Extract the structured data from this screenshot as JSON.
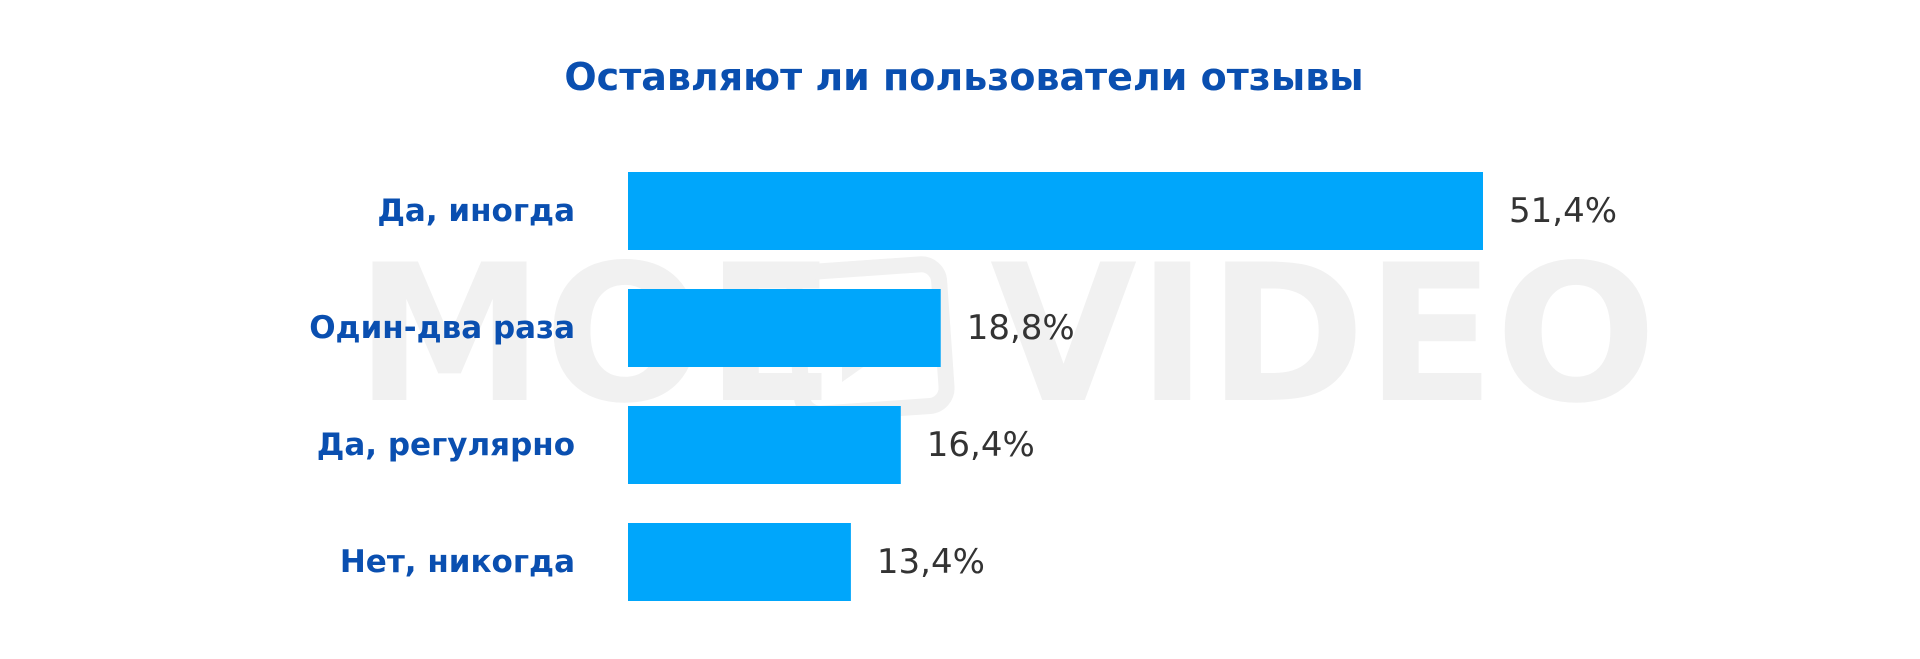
{
  "chart_data": {
    "type": "bar",
    "orientation": "horizontal",
    "title": "Оставляют ли пользователи отзывы",
    "categories": [
      "Да, иногда",
      "Один-два раза",
      "Да, регулярно",
      "Нет, никогда"
    ],
    "values": [
      51.4,
      18.8,
      16.4,
      13.4
    ],
    "value_labels": [
      "51,4%",
      "18,8%",
      "16,4%",
      "13,4%"
    ],
    "unit": "%",
    "xlim": [
      0,
      51.4
    ],
    "grid": false,
    "legend": "none"
  },
  "watermark": {
    "left_text": "MOE",
    "right_text": "VIDEO",
    "icon": "play-icon"
  },
  "colors": {
    "bar": "#00a6fb",
    "title": "#0a4fb0",
    "category_label": "#0a4fb0",
    "value_label": "#333333",
    "watermark": "#f1f1f1",
    "background": "#ffffff"
  }
}
